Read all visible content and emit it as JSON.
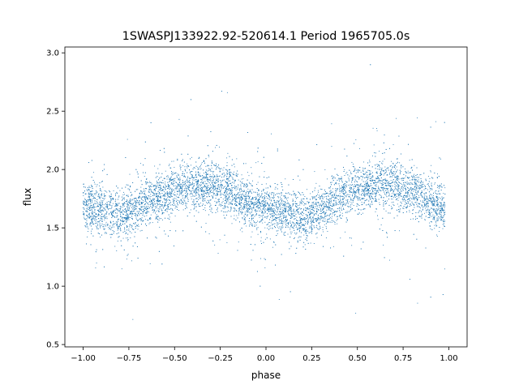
{
  "chart_data": {
    "type": "scatter",
    "title": "1SWASPJ133922.92-520614.1 Period 1965705.0s",
    "xlabel": "phase",
    "ylabel": "flux",
    "xlim": [
      -1.1,
      1.1
    ],
    "ylim": [
      0.48,
      3.05
    ],
    "xticks": [
      -1.0,
      -0.75,
      -0.5,
      -0.25,
      0.0,
      0.25,
      0.5,
      0.75,
      1.0
    ],
    "xtick_labels": [
      "−1.00",
      "−0.75",
      "−0.50",
      "−0.25",
      "0.00",
      "0.25",
      "0.50",
      "0.75",
      "1.00"
    ],
    "yticks": [
      0.5,
      1.0,
      1.5,
      2.0,
      2.5,
      3.0
    ],
    "ytick_labels": [
      "0.5",
      "1.0",
      "1.5",
      "2.0",
      "2.5",
      "3.0"
    ],
    "grid": false,
    "legend": "none",
    "point_color": "#1f77b4",
    "phase_range": [
      -1.0,
      0.98
    ],
    "series": [
      {
        "phase_profile": [
          {
            "x": -1.0,
            "y": 1.68
          },
          {
            "x": -0.9,
            "y": 1.66
          },
          {
            "x": -0.8,
            "y": 1.6
          },
          {
            "x": -0.7,
            "y": 1.68
          },
          {
            "x": -0.6,
            "y": 1.76
          },
          {
            "x": -0.5,
            "y": 1.83
          },
          {
            "x": -0.4,
            "y": 1.86
          },
          {
            "x": -0.3,
            "y": 1.88
          },
          {
            "x": -0.2,
            "y": 1.82
          },
          {
            "x": -0.1,
            "y": 1.72
          },
          {
            "x": 0.0,
            "y": 1.66
          },
          {
            "x": 0.1,
            "y": 1.64
          },
          {
            "x": 0.2,
            "y": 1.58
          },
          {
            "x": 0.3,
            "y": 1.66
          },
          {
            "x": 0.4,
            "y": 1.76
          },
          {
            "x": 0.5,
            "y": 1.84
          },
          {
            "x": 0.6,
            "y": 1.87
          },
          {
            "x": 0.7,
            "y": 1.88
          },
          {
            "x": 0.8,
            "y": 1.82
          },
          {
            "x": 0.9,
            "y": 1.72
          },
          {
            "x": 0.98,
            "y": 1.66
          }
        ]
      }
    ]
  }
}
